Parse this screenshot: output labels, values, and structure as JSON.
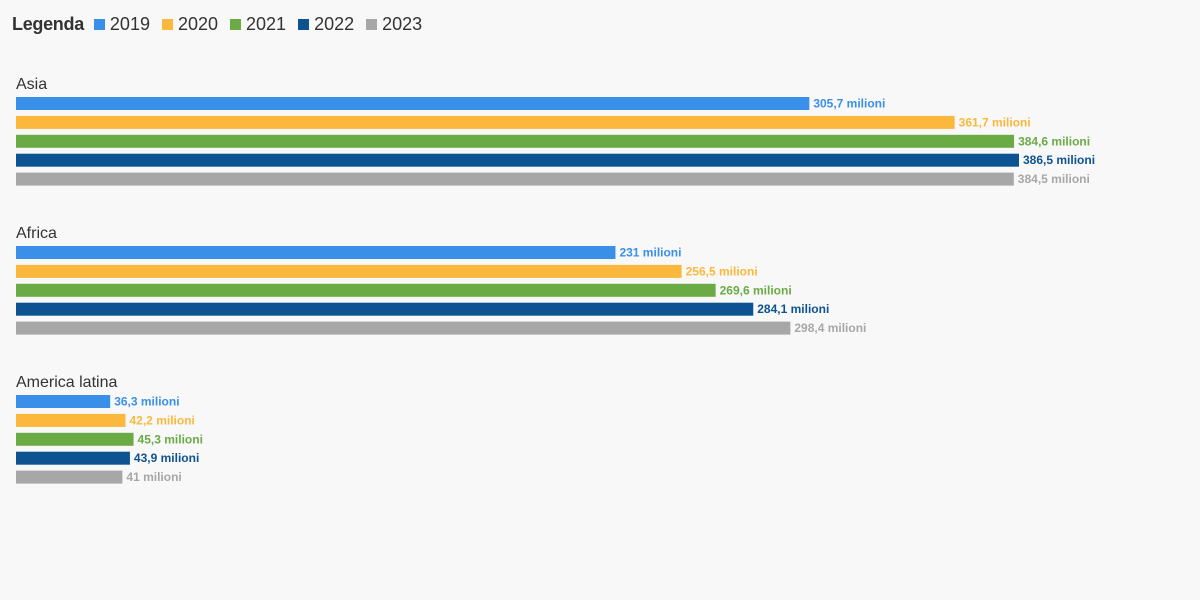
{
  "legend": {
    "title": "Legenda"
  },
  "chart_data": {
    "type": "bar",
    "orientation": "horizontal",
    "series": [
      {
        "name": "2019",
        "color": "#3a8fe8"
      },
      {
        "name": "2020",
        "color": "#fbb83c"
      },
      {
        "name": "2021",
        "color": "#6aab46"
      },
      {
        "name": "2022",
        "color": "#0d5391"
      },
      {
        "name": "2023",
        "color": "#a7a7a7"
      }
    ],
    "groups": [
      {
        "title": "Asia",
        "values": [
          305.7,
          361.7,
          384.6,
          386.5,
          384.5
        ],
        "labels": [
          "305,7 milioni",
          "361,7 milioni",
          "384,6 milioni",
          "386,5 milioni",
          "384,5 milioni"
        ]
      },
      {
        "title": "Africa",
        "values": [
          231,
          256.5,
          269.6,
          284.1,
          298.4
        ],
        "labels": [
          "231 milioni",
          "256,5 milioni",
          "269,6 milioni",
          "284,1 milioni",
          "298,4 milioni"
        ]
      },
      {
        "title": "America latina",
        "values": [
          36.3,
          42.2,
          45.3,
          43.9,
          41
        ],
        "labels": [
          "36,3 milioni",
          "42,2 milioni",
          "45,3 milioni",
          "43,9 milioni",
          "41 milioni"
        ]
      }
    ],
    "xlim": [
      0,
      386.5
    ],
    "legend_position": "top-left",
    "grid": false
  }
}
